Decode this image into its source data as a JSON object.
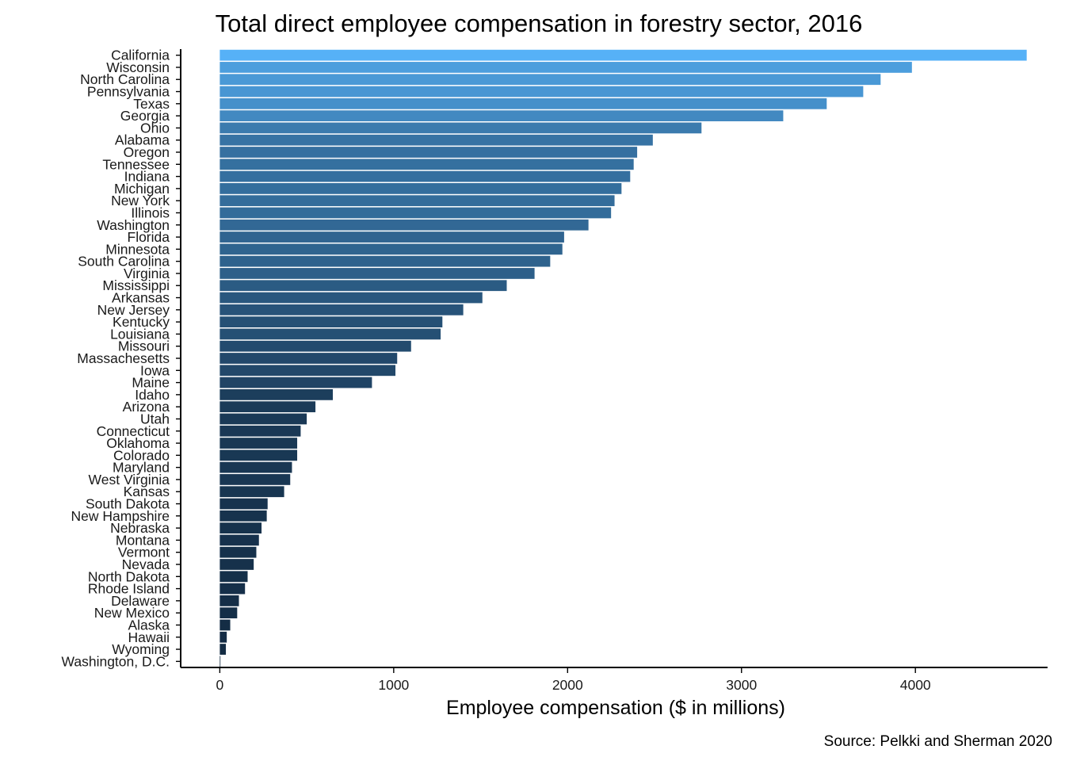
{
  "chart_data": {
    "type": "bar",
    "orientation": "horizontal",
    "title": "Total direct employee compensation in forestry sector, 2016",
    "xlabel": "Employee compensation ($ in millions)",
    "ylabel": "",
    "caption": "Source: Pelkki and Sherman 2020",
    "xlim": [
      -225,
      4760
    ],
    "x_ticks": [
      0,
      1000,
      2000,
      3000,
      4000
    ],
    "grid": false,
    "legend": "none",
    "color_scale": {
      "low": "#132B43",
      "high": "#56B1F7"
    },
    "categories": [
      "California",
      "Wisconsin",
      "North Carolina",
      "Pennsylvania",
      "Texas",
      "Georgia",
      "Ohio",
      "Alabama",
      "Oregon",
      "Tennessee",
      "Indiana",
      "Michigan",
      "New York",
      "Illinois",
      "Washington",
      "Florida",
      "Minnesota",
      "South Carolina",
      "Virginia",
      "Mississippi",
      "Arkansas",
      "New Jersey",
      "Kentucky",
      "Louisiana",
      "Missouri",
      "Massachesetts",
      "Iowa",
      "Maine",
      "Idaho",
      "Arizona",
      "Utah",
      "Connecticut",
      "Oklahoma",
      "Colorado",
      "Maryland",
      "West Virginia",
      "Kansas",
      "South Dakota",
      "New Hampshire",
      "Nebraska",
      "Montana",
      "Vermont",
      "Nevada",
      "North Dakota",
      "Rhode Island",
      "Delaware",
      "New Mexico",
      "Alaska",
      "Hawaii",
      "Wyoming",
      "Washington, D.C."
    ],
    "values": [
      4640,
      3980,
      3800,
      3700,
      3490,
      3240,
      2770,
      2490,
      2400,
      2380,
      2360,
      2310,
      2270,
      2250,
      2120,
      1980,
      1970,
      1900,
      1810,
      1650,
      1510,
      1400,
      1280,
      1270,
      1100,
      1020,
      1010,
      875,
      650,
      550,
      500,
      465,
      445,
      445,
      415,
      405,
      370,
      275,
      270,
      240,
      225,
      210,
      195,
      160,
      145,
      110,
      100,
      60,
      40,
      35,
      3
    ]
  }
}
